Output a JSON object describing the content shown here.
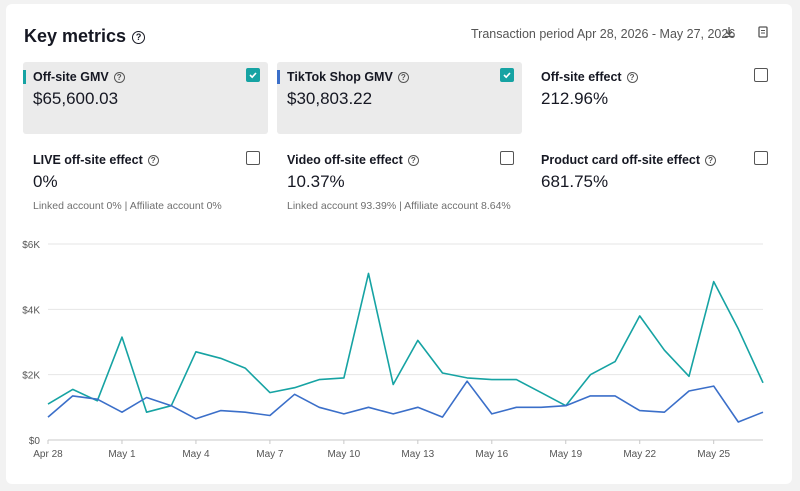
{
  "header": {
    "title": "Key metrics",
    "period": "Transaction period Apr 28, 2026 - May 27, 2026"
  },
  "metrics": [
    {
      "label": "Off-site GMV",
      "value": "$65,600.03",
      "checked": true,
      "accent": "#16a3a3",
      "sub": ""
    },
    {
      "label": "TikTok Shop GMV",
      "value": "$30,803.22",
      "checked": true,
      "accent": "#3b6fc9",
      "sub": ""
    },
    {
      "label": "Off-site effect",
      "value": "212.96%",
      "checked": false,
      "accent": "",
      "sub": ""
    },
    {
      "label": "LIVE off-site effect",
      "value": "0%",
      "checked": false,
      "accent": "",
      "sub": "Linked account 0% | Affiliate account 0%"
    },
    {
      "label": "Video off-site effect",
      "value": "10.37%",
      "checked": false,
      "accent": "",
      "sub": "Linked account 93.39% | Affiliate account 8.64%"
    },
    {
      "label": "Product card off-site effect",
      "value": "681.75%",
      "checked": false,
      "accent": "",
      "sub": ""
    }
  ],
  "colors": {
    "teal": "#16a3a3",
    "blue": "#3b6fc9"
  },
  "chart_data": {
    "type": "line",
    "title": "",
    "xlabel": "",
    "ylabel": "",
    "ylim": [
      0,
      6000
    ],
    "yticks": [
      "$0",
      "$2K",
      "$4K",
      "$6K"
    ],
    "yticks_values": [
      0,
      2000,
      4000,
      6000
    ],
    "x_tick_labels": [
      "Apr 28",
      "May 1",
      "May 4",
      "May 7",
      "May 10",
      "May 13",
      "May 16",
      "May 19",
      "May 22",
      "May 25"
    ],
    "x_tick_index": [
      0,
      3,
      6,
      9,
      12,
      15,
      18,
      21,
      24,
      27
    ],
    "x": [
      "Apr 28",
      "Apr 29",
      "Apr 30",
      "May 1",
      "May 2",
      "May 3",
      "May 4",
      "May 5",
      "May 6",
      "May 7",
      "May 8",
      "May 9",
      "May 10",
      "May 11",
      "May 12",
      "May 13",
      "May 14",
      "May 15",
      "May 16",
      "May 17",
      "May 18",
      "May 19",
      "May 20",
      "May 21",
      "May 22",
      "May 23",
      "May 24",
      "May 25",
      "May 26",
      "May 27"
    ],
    "grid": true,
    "series": [
      {
        "color": "#16a3a3",
        "values": [
          1100,
          1550,
          1200,
          3150,
          850,
          1050,
          2700,
          2500,
          2200,
          1450,
          1600,
          1850,
          1900,
          5100,
          1700,
          3050,
          2050,
          1900,
          1850,
          1850,
          1450,
          1050,
          2000,
          2400,
          3800,
          2750,
          1950,
          4850,
          3400,
          1750
        ]
      },
      {
        "color": "#3b6fc9",
        "values": [
          700,
          1350,
          1250,
          850,
          1300,
          1050,
          650,
          900,
          850,
          750,
          1400,
          1000,
          800,
          1000,
          800,
          1000,
          700,
          1800,
          800,
          1000,
          1000,
          1050,
          1350,
          1350,
          900,
          850,
          1500,
          1650,
          550,
          850
        ]
      }
    ]
  }
}
